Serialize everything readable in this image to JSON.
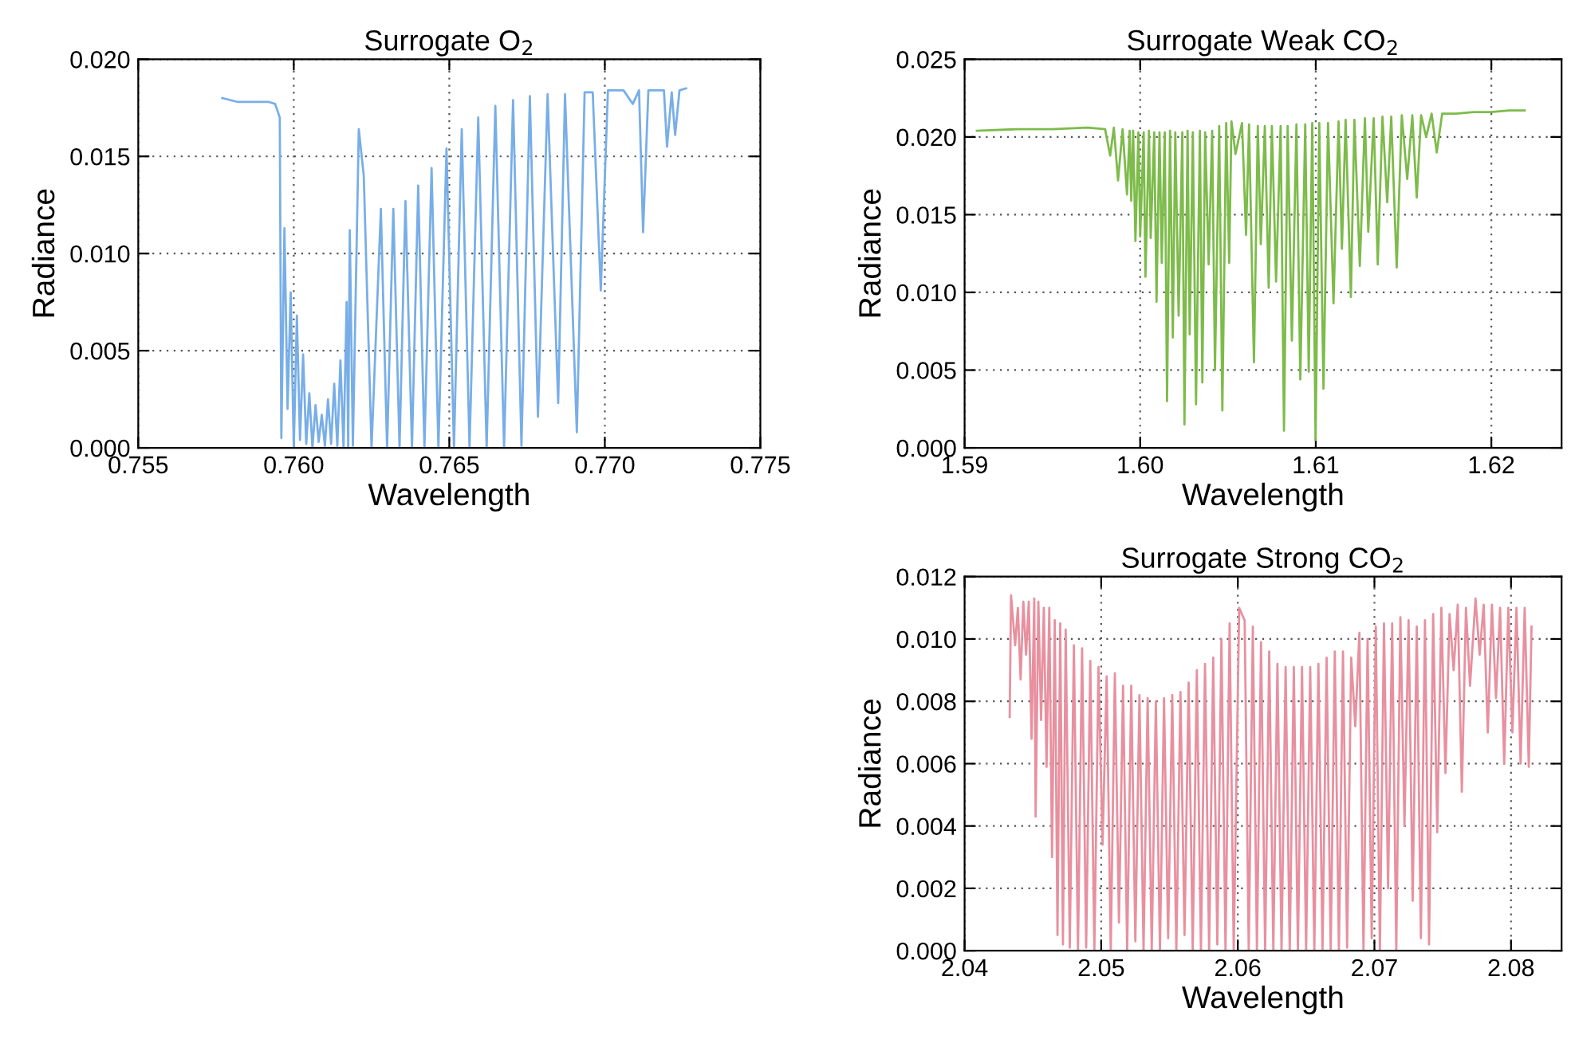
{
  "chart_data": [
    {
      "type": "line",
      "title": "Surrogate O$_{2}$",
      "xlabel": "Wavelength",
      "ylabel": "Radiance",
      "grid": true,
      "xlim": [
        0.755,
        0.775
      ],
      "xticks": [
        {
          "value": 0.755,
          "label": "0.755"
        },
        {
          "value": 0.76,
          "label": "0.760"
        },
        {
          "value": 0.765,
          "label": "0.765"
        },
        {
          "value": 0.77,
          "label": "0.770"
        },
        {
          "value": 0.775,
          "label": "0.775"
        }
      ],
      "ylim": [
        0,
        0.02
      ],
      "yticks": [
        {
          "value": 0,
          "label": "0.000"
        },
        {
          "value": 0.005,
          "label": "0.005"
        },
        {
          "value": 0.01,
          "label": "0.010"
        },
        {
          "value": 0.015,
          "label": "0.015"
        },
        {
          "value": 0.02,
          "label": "0.020"
        }
      ],
      "series": [
        {
          "color": "#78aee8",
          "x": [
            0.7577,
            0.7582,
            0.7587,
            0.7592,
            0.7594,
            0.75955,
            0.7596,
            0.7597,
            0.7598,
            0.7599,
            0.76,
            0.7601,
            0.7602,
            0.7603,
            0.7604,
            0.7605,
            0.7606,
            0.7607,
            0.7608,
            0.7609,
            0.761,
            0.7611,
            0.7612,
            0.7613,
            0.7614,
            0.7615,
            0.7616,
            0.7617,
            0.76175,
            0.7618,
            0.7619,
            0.76209,
            0.76225,
            0.7625,
            0.7628,
            0.763,
            0.7632,
            0.7634,
            0.76359,
            0.7638,
            0.764,
            0.7642,
            0.76443,
            0.76465,
            0.76491,
            0.76515,
            0.7654,
            0.76565,
            0.76593,
            0.7662,
            0.76648,
            0.76676,
            0.76705,
            0.76732,
            0.76759,
            0.76785,
            0.76816,
            0.7685,
            0.76872,
            0.7691,
            0.76935,
            0.76961,
            0.76987,
            0.7701,
            0.7706,
            0.7709,
            0.7711,
            0.77123,
            0.7714,
            0.7719,
            0.772,
            0.77215,
            0.77226,
            0.7724,
            0.77261
          ],
          "values": [
            0.018,
            0.0178,
            0.0178,
            0.0178,
            0.0177,
            0.017,
            0.0005,
            0.0113,
            0.002,
            0.008,
            0.0,
            0.0068,
            0.0004,
            0.0048,
            0.0002,
            0.0028,
            0.0,
            0.0022,
            0.0003,
            0.0017,
            0.0001,
            0.0025,
            0.0002,
            0.0033,
            0.0001,
            0.0045,
            0.0,
            0.0075,
            0.0,
            0.0112,
            0.0001,
            0.0164,
            0.014,
            0.0,
            0.0123,
            0.0,
            0.0123,
            0.0,
            0.0127,
            0.0,
            0.0135,
            0.0,
            0.0144,
            0.0,
            0.0154,
            0.0,
            0.0164,
            0.0,
            0.017,
            0.0,
            0.0176,
            0.0,
            0.0179,
            0.0001,
            0.0181,
            0.0016,
            0.0182,
            0.0023,
            0.0182,
            0.0008,
            0.0183,
            0.0183,
            0.0081,
            0.0184,
            0.0184,
            0.0177,
            0.0184,
            0.0111,
            0.0184,
            0.0184,
            0.0155,
            0.0183,
            0.0161,
            0.0184,
            0.0185
          ]
        }
      ]
    },
    {
      "type": "line",
      "title": "Surrogate Weak CO$_{2}$",
      "xlabel": "Wavelength",
      "ylabel": "Radiance",
      "grid": true,
      "xlim": [
        1.59,
        1.624
      ],
      "xticks": [
        {
          "value": 1.59,
          "label": "1.59"
        },
        {
          "value": 1.6,
          "label": "1.60"
        },
        {
          "value": 1.61,
          "label": "1.61"
        },
        {
          "value": 1.62,
          "label": "1.62"
        }
      ],
      "ylim": [
        0,
        0.025
      ],
      "yticks": [
        {
          "value": 0,
          "label": "0.000"
        },
        {
          "value": 0.005,
          "label": "0.005"
        },
        {
          "value": 0.01,
          "label": "0.010"
        },
        {
          "value": 0.015,
          "label": "0.015"
        },
        {
          "value": 0.02,
          "label": "0.020"
        },
        {
          "value": 0.025,
          "label": "0.025"
        }
      ],
      "series": [
        {
          "color": "#7dbb4a",
          "x": [
            1.5907,
            1.593,
            1.595,
            1.597,
            1.598,
            1.59829,
            1.5985,
            1.59874,
            1.599,
            1.59925,
            1.5994,
            1.59949,
            1.5996,
            1.59973,
            1.5999,
            1.6,
            1.6002,
            1.6003,
            1.6005,
            1.6006,
            1.6008,
            1.60093,
            1.6011,
            1.60123,
            1.6014,
            1.60153,
            1.6017,
            1.60186,
            1.602,
            1.60219,
            1.6024,
            1.60252,
            1.6027,
            1.60282,
            1.603,
            1.60318,
            1.6034,
            1.60354,
            1.6037,
            1.6039,
            1.6041,
            1.60426,
            1.6045,
            1.60468,
            1.6049,
            1.60507,
            1.6052,
            1.60543,
            1.6058,
            1.60603,
            1.6062,
            1.60648,
            1.6067,
            1.60687,
            1.6071,
            1.60732,
            1.6075,
            1.60774,
            1.608,
            1.60819,
            1.6084,
            1.60864,
            1.6089,
            1.60912,
            1.6094,
            1.6096,
            1.6098,
            1.60999,
            1.6102,
            1.61044,
            1.6107,
            1.61101,
            1.6113,
            1.61149,
            1.6117,
            1.612,
            1.6122,
            1.61251,
            1.6128,
            1.61299,
            1.6133,
            1.61353,
            1.6138,
            1.61407,
            1.6143,
            1.61461,
            1.6149,
            1.61521,
            1.6155,
            1.61575,
            1.616,
            1.61629,
            1.6166,
            1.61689,
            1.6172,
            1.618,
            1.619,
            1.62,
            1.621,
            1.6219
          ],
          "values": [
            0.0204,
            0.0205,
            0.0205,
            0.0206,
            0.0205,
            0.0188,
            0.0206,
            0.0172,
            0.0205,
            0.0163,
            0.0204,
            0.0159,
            0.0204,
            0.0133,
            0.0203,
            0.0136,
            0.0203,
            0.011,
            0.0204,
            0.0135,
            0.0203,
            0.0094,
            0.0203,
            0.0119,
            0.0203,
            0.003,
            0.0204,
            0.0071,
            0.0203,
            0.0085,
            0.0203,
            0.0015,
            0.0204,
            0.0073,
            0.0203,
            0.0028,
            0.0204,
            0.0042,
            0.0203,
            0.0118,
            0.0204,
            0.005,
            0.0207,
            0.0024,
            0.0209,
            0.0119,
            0.021,
            0.0189,
            0.0209,
            0.0137,
            0.0208,
            0.0055,
            0.0207,
            0.0131,
            0.0207,
            0.0103,
            0.0207,
            0.0107,
            0.0207,
            0.0011,
            0.0207,
            0.0069,
            0.0208,
            0.0044,
            0.0208,
            0.0049,
            0.0209,
            0.0005,
            0.0209,
            0.0038,
            0.0209,
            0.0093,
            0.021,
            0.0128,
            0.0211,
            0.0097,
            0.0211,
            0.0117,
            0.0212,
            0.0139,
            0.0212,
            0.0118,
            0.0213,
            0.0158,
            0.0213,
            0.0116,
            0.0214,
            0.0173,
            0.0214,
            0.0161,
            0.0214,
            0.02,
            0.0215,
            0.019,
            0.0215,
            0.0215,
            0.0216,
            0.0216,
            0.0217,
            0.0217
          ]
        }
      ]
    },
    {
      "type": "line",
      "title": "Surrogate Strong CO$_{2}$",
      "xlabel": "Wavelength",
      "ylabel": "Radiance",
      "grid": true,
      "xlim": [
        2.04,
        2.0837
      ],
      "xticks": [
        {
          "value": 2.04,
          "label": "2.04"
        },
        {
          "value": 2.05,
          "label": "2.05"
        },
        {
          "value": 2.06,
          "label": "2.06"
        },
        {
          "value": 2.07,
          "label": "2.07"
        },
        {
          "value": 2.08,
          "label": "2.08"
        }
      ],
      "ylim": [
        0,
        0.012
      ],
      "yticks": [
        {
          "value": 0,
          "label": "0.000"
        },
        {
          "value": 0.002,
          "label": "0.002"
        },
        {
          "value": 0.004,
          "label": "0.004"
        },
        {
          "value": 0.006,
          "label": "0.006"
        },
        {
          "value": 0.008,
          "label": "0.008"
        },
        {
          "value": 0.01,
          "label": "0.010"
        },
        {
          "value": 0.012,
          "label": "0.012"
        }
      ],
      "series": [
        {
          "color": "#e8909f",
          "x": [
            2.0433,
            2.0434,
            2.0437,
            2.0439,
            2.0441,
            2.0443,
            2.0445,
            2.0447,
            2.0449,
            2.0451,
            2.0452,
            2.0454,
            2.0456,
            2.0458,
            2.046,
            2.0462,
            2.0464,
            2.0466,
            2.0468,
            2.047,
            2.0472,
            2.0474,
            2.0477,
            2.048,
            2.0483,
            2.0486,
            2.0489,
            2.0492,
            2.0495,
            2.0498,
            2.0501,
            2.0504,
            2.0507,
            2.051,
            2.0513,
            2.0516,
            2.0519,
            2.0522,
            2.0525,
            2.0528,
            2.0531,
            2.0534,
            2.0537,
            2.054,
            2.0543,
            2.0546,
            2.0549,
            2.0552,
            2.0555,
            2.0558,
            2.0561,
            2.0564,
            2.0567,
            2.057,
            2.0573,
            2.0576,
            2.0579,
            2.0582,
            2.0585,
            2.0588,
            2.0591,
            2.0594,
            2.0597,
            2.0601,
            2.0605,
            2.0608,
            2.0611,
            2.0614,
            2.0617,
            2.062,
            2.0623,
            2.0626,
            2.0629,
            2.0632,
            2.0635,
            2.0638,
            2.0641,
            2.0644,
            2.0647,
            2.065,
            2.0653,
            2.0656,
            2.0659,
            2.0662,
            2.0665,
            2.0668,
            2.0671,
            2.0674,
            2.0677,
            2.068,
            2.0683,
            2.0686,
            2.0689,
            2.0692,
            2.0695,
            2.0698,
            2.0701,
            2.0704,
            2.0707,
            2.071,
            2.0713,
            2.0716,
            2.0719,
            2.0722,
            2.0725,
            2.0728,
            2.0731,
            2.0734,
            2.0737,
            2.074,
            2.0743,
            2.0746,
            2.0749,
            2.0752,
            2.0755,
            2.0758,
            2.0761,
            2.0764,
            2.0767,
            2.077,
            2.0774,
            2.0777,
            2.078,
            2.0783,
            2.0786,
            2.0789,
            2.0792,
            2.0795,
            2.0798,
            2.0801,
            2.0804,
            2.0807,
            2.081,
            2.0813,
            2.0815
          ],
          "values": [
            0.0075,
            0.0114,
            0.0098,
            0.011,
            0.0087,
            0.0112,
            0.0095,
            0.0112,
            0.0068,
            0.0113,
            0.0043,
            0.0112,
            0.0074,
            0.011,
            0.0059,
            0.011,
            0.003,
            0.0106,
            0.0005,
            0.0105,
            0.0002,
            0.0103,
            0.0001,
            0.0098,
            0.0,
            0.0097,
            0.0001,
            0.0093,
            0.0,
            0.0091,
            0.0034,
            0.0088,
            0.0,
            0.0089,
            0.0009,
            0.0085,
            0.0,
            0.0085,
            0.0003,
            0.0082,
            0.0,
            0.0081,
            0.0,
            0.008,
            0.0,
            0.0081,
            0.0004,
            0.0082,
            0.0,
            0.0083,
            0.0005,
            0.0086,
            0.0,
            0.009,
            0.0,
            0.0092,
            0.0,
            0.0094,
            0.0002,
            0.01,
            0.0,
            0.0105,
            0.0,
            0.011,
            0.0106,
            0.0,
            0.0104,
            0.0,
            0.0099,
            0.0,
            0.0096,
            0.0,
            0.0092,
            0.0,
            0.0091,
            0.0,
            0.0091,
            0.0,
            0.0091,
            0.0,
            0.0091,
            0.0,
            0.0092,
            0.0,
            0.0094,
            0.0,
            0.0096,
            0.0,
            0.0096,
            0.0001,
            0.0094,
            0.0072,
            0.0102,
            0.0,
            0.01,
            0.0004,
            0.0104,
            0.0,
            0.0105,
            0.002,
            0.0105,
            0.0,
            0.0107,
            0.004,
            0.0106,
            0.0016,
            0.0104,
            0.0004,
            0.0106,
            0.0002,
            0.0108,
            0.0038,
            0.011,
            0.0057,
            0.0108,
            0.009,
            0.0111,
            0.0051,
            0.011,
            0.0085,
            0.0113,
            0.0095,
            0.0111,
            0.007,
            0.0111,
            0.0081,
            0.011,
            0.006,
            0.011,
            0.007,
            0.011,
            0.006,
            0.011,
            0.0059,
            0.0104
          ]
        }
      ]
    }
  ]
}
